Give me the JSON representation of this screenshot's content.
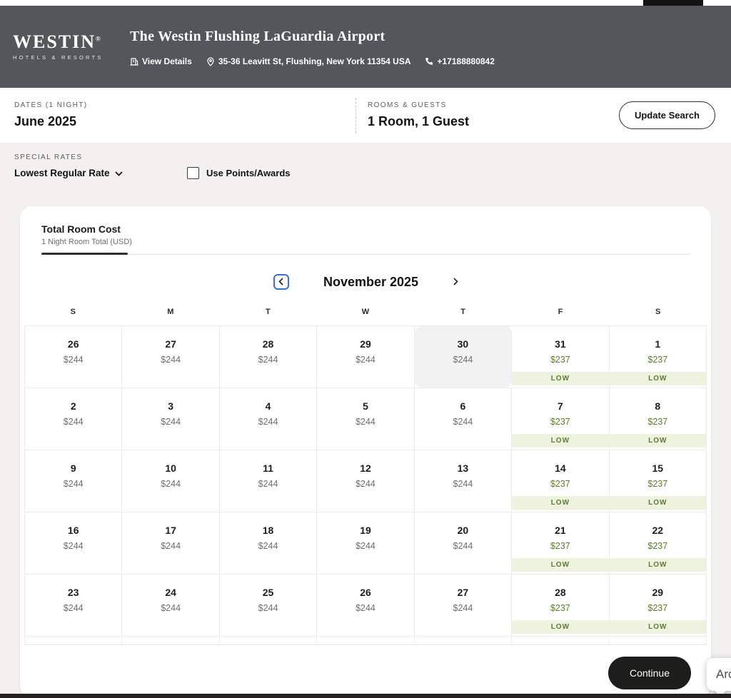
{
  "header": {
    "brand_name": "WESTIN",
    "brand_trademark": "®",
    "brand_tagline": "HOTELS & RESORTS",
    "hotel_name": "The Westin Flushing LaGuardia Airport",
    "view_details_label": "View Details",
    "address": "35-36 Leavitt St, Flushing, New York 11354 USA",
    "phone": "+17188880842"
  },
  "search_summary": {
    "dates_label": "DATES (1 NIGHT)",
    "dates_value": "June 2025",
    "rooms_label": "ROOMS & GUESTS",
    "rooms_value": "1 Room, 1 Guest",
    "update_button_label": "Update Search"
  },
  "special_rates": {
    "section_label": "SPECIAL RATES",
    "selected_rate": "Lowest Regular Rate",
    "points_checkbox_label": "Use Points/Awards",
    "points_checked": false
  },
  "calendar": {
    "tab_title": "Total Room Cost",
    "tab_subtitle": "1 Night Room Total (USD)",
    "month_label": "November 2025",
    "day_headers": [
      "S",
      "M",
      "T",
      "W",
      "T",
      "F",
      "S"
    ],
    "low_badge_label": "LOW",
    "weeks": [
      [
        {
          "day": "26",
          "price": "$244"
        },
        {
          "day": "27",
          "price": "$244"
        },
        {
          "day": "28",
          "price": "$244"
        },
        {
          "day": "29",
          "price": "$244"
        },
        {
          "day": "30",
          "price": "$244",
          "selected": true
        },
        {
          "day": "31",
          "price": "$237",
          "low": true
        },
        {
          "day": "1",
          "price": "$237",
          "low": true
        }
      ],
      [
        {
          "day": "2",
          "price": "$244"
        },
        {
          "day": "3",
          "price": "$244"
        },
        {
          "day": "4",
          "price": "$244"
        },
        {
          "day": "5",
          "price": "$244"
        },
        {
          "day": "6",
          "price": "$244"
        },
        {
          "day": "7",
          "price": "$237",
          "low": true
        },
        {
          "day": "8",
          "price": "$237",
          "low": true
        }
      ],
      [
        {
          "day": "9",
          "price": "$244"
        },
        {
          "day": "10",
          "price": "$244"
        },
        {
          "day": "11",
          "price": "$244"
        },
        {
          "day": "12",
          "price": "$244"
        },
        {
          "day": "13",
          "price": "$244"
        },
        {
          "day": "14",
          "price": "$237",
          "low": true
        },
        {
          "day": "15",
          "price": "$237",
          "low": true
        }
      ],
      [
        {
          "day": "16",
          "price": "$244"
        },
        {
          "day": "17",
          "price": "$244"
        },
        {
          "day": "18",
          "price": "$244"
        },
        {
          "day": "19",
          "price": "$244"
        },
        {
          "day": "20",
          "price": "$244"
        },
        {
          "day": "21",
          "price": "$237",
          "low": true
        },
        {
          "day": "22",
          "price": "$237",
          "low": true
        }
      ],
      [
        {
          "day": "23",
          "price": "$244"
        },
        {
          "day": "24",
          "price": "$244"
        },
        {
          "day": "25",
          "price": "$244"
        },
        {
          "day": "26",
          "price": "$244"
        },
        {
          "day": "27",
          "price": "$244"
        },
        {
          "day": "28",
          "price": "$237",
          "low": true
        },
        {
          "day": "29",
          "price": "$237",
          "low": true
        }
      ]
    ]
  },
  "footer": {
    "continue_label": "Continue"
  },
  "overlay": {
    "partial_button_label": "Arc"
  },
  "colors": {
    "header_bg": "#53565a",
    "accent_green": "#5b7e2c",
    "low_badge_bg": "#edf3df",
    "focus_blue": "#3a70d6",
    "continue_bg": "#1d1d1b",
    "selected_day_bg": "#f2f2f2"
  }
}
